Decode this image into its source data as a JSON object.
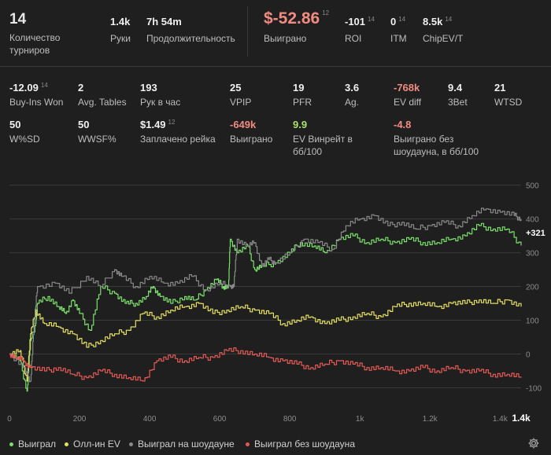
{
  "summary": {
    "tournaments": {
      "value": "14",
      "label": "Количество турниров"
    },
    "hands": {
      "value": "1.4k",
      "label": "Руки"
    },
    "duration": {
      "value": "7h 54m",
      "label": "Продолжительность"
    },
    "won": {
      "value": "$-52.86",
      "count": "12",
      "label": "Выиграно"
    },
    "roi": {
      "value": "-101",
      "count": "14",
      "label": "ROI"
    },
    "itm": {
      "value": "0",
      "count": "14",
      "label": "ITM"
    },
    "chipev": {
      "value": "8.5k",
      "count": "14",
      "label": "ChipEV/T"
    }
  },
  "stats_row1": [
    {
      "value": "-12.09",
      "count": "14",
      "label": "Buy-Ins Won",
      "neg": false
    },
    {
      "value": "2",
      "count": "",
      "label": "Avg. Tables",
      "neg": false
    },
    {
      "value": "193",
      "count": "",
      "label": "Рук в час",
      "neg": false
    },
    {
      "value": "25",
      "count": "",
      "label": "VPIP",
      "neg": false
    },
    {
      "value": "19",
      "count": "",
      "label": "PFR",
      "neg": false
    },
    {
      "value": "3.6",
      "count": "",
      "label": "Ag.",
      "neg": false
    },
    {
      "value": "-768k",
      "count": "",
      "label": "EV diff",
      "neg": true
    },
    {
      "value": "9.4",
      "count": "",
      "label": "3Bet",
      "neg": false
    },
    {
      "value": "21",
      "count": "",
      "label": "WTSD",
      "neg": false
    }
  ],
  "stats_row2": [
    {
      "value": "50",
      "count": "",
      "label": "W%SD",
      "kind": ""
    },
    {
      "value": "50",
      "count": "",
      "label": "WWSF%",
      "kind": ""
    },
    {
      "value": "$1.49",
      "count": "12",
      "label": "Заплачено рейка",
      "kind": ""
    },
    {
      "value": "-649k",
      "count": "",
      "label": "Выиграно",
      "kind": "neg"
    },
    {
      "value": "9.9",
      "count": "",
      "label": "EV Винрейт в бб/100",
      "kind": "pos"
    },
    {
      "value": "-4.8",
      "count": "",
      "label": "Выиграно без шоудауна, в бб/100",
      "kind": "neg"
    }
  ],
  "chart_data": {
    "type": "line",
    "y_ticks": [
      "500",
      "400",
      "300",
      "200",
      "100",
      "0",
      "-100"
    ],
    "x_ticks": [
      "0",
      "200",
      "400",
      "600",
      "800",
      "1k",
      "1.2k",
      "1.4k"
    ],
    "x_end_label": "1.4k",
    "end_value_label": "+321",
    "ylim": [
      -150,
      520
    ],
    "xlim": [
      0,
      1460
    ],
    "series": [
      {
        "name": "Выиграл",
        "color": "#7be06b",
        "x": [
          0,
          30,
          50,
          60,
          75,
          80,
          110,
          140,
          160,
          180,
          200,
          230,
          260,
          300,
          330,
          360,
          390,
          410,
          430,
          460,
          500,
          530,
          560,
          590,
          610,
          625,
          630,
          650,
          680,
          700,
          720,
          760,
          800,
          830,
          870,
          900,
          940,
          980,
          1020,
          1060,
          1100,
          1140,
          1180,
          1220,
          1260,
          1300,
          1340,
          1380,
          1420,
          1460
        ],
        "y": [
          0,
          -20,
          -110,
          40,
          90,
          150,
          170,
          140,
          120,
          160,
          120,
          70,
          200,
          180,
          150,
          150,
          170,
          200,
          170,
          150,
          170,
          160,
          190,
          220,
          200,
          200,
          340,
          300,
          320,
          250,
          260,
          270,
          300,
          330,
          320,
          300,
          340,
          350,
          330,
          340,
          330,
          340,
          330,
          330,
          340,
          350,
          380,
          370,
          370,
          321
        ]
      },
      {
        "name": "Олл-ин EV",
        "color": "#e6e060",
        "x": [
          0,
          30,
          50,
          60,
          75,
          100,
          140,
          180,
          220,
          260,
          300,
          340,
          380,
          420,
          460,
          500,
          540,
          580,
          620,
          660,
          700,
          740,
          780,
          820,
          860,
          900,
          940,
          980,
          1020,
          1060,
          1100,
          1140,
          1180,
          1220,
          1260,
          1300,
          1340,
          1380,
          1420,
          1460
        ],
        "y": [
          0,
          10,
          -80,
          60,
          130,
          90,
          80,
          60,
          20,
          40,
          60,
          70,
          120,
          110,
          130,
          140,
          150,
          120,
          130,
          140,
          130,
          120,
          90,
          100,
          110,
          90,
          100,
          110,
          120,
          110,
          140,
          150,
          150,
          140,
          150,
          150,
          160,
          150,
          160,
          140
        ]
      },
      {
        "name": "Выиграл на шоудауне",
        "color": "#8a8a8a",
        "x": [
          0,
          40,
          60,
          70,
          80,
          130,
          170,
          220,
          260,
          300,
          320,
          360,
          400,
          440,
          480,
          520,
          560,
          600,
          630,
          640,
          650,
          680,
          700,
          720,
          740,
          760,
          800,
          840,
          880,
          920,
          960,
          1000,
          1040,
          1080,
          1120,
          1160,
          1200,
          1240,
          1280,
          1320,
          1360,
          1400,
          1440,
          1460
        ],
        "y": [
          0,
          -40,
          -80,
          90,
          200,
          210,
          180,
          230,
          200,
          250,
          230,
          200,
          230,
          210,
          210,
          230,
          190,
          210,
          200,
          200,
          340,
          320,
          330,
          260,
          280,
          270,
          300,
          340,
          330,
          310,
          380,
          400,
          410,
          380,
          390,
          370,
          380,
          390,
          380,
          410,
          430,
          420,
          410,
          400
        ]
      },
      {
        "name": "Выиграл без шоудауна",
        "color": "#e55a55",
        "x": [
          0,
          20,
          40,
          60,
          100,
          140,
          180,
          220,
          260,
          300,
          340,
          380,
          420,
          460,
          500,
          540,
          580,
          620,
          660,
          700,
          740,
          780,
          820,
          860,
          900,
          940,
          980,
          1020,
          1060,
          1100,
          1140,
          1180,
          1220,
          1260,
          1300,
          1340,
          1380,
          1420,
          1460
        ],
        "y": [
          0,
          -10,
          -20,
          -40,
          -50,
          -40,
          -60,
          -70,
          -50,
          -60,
          -70,
          -80,
          -20,
          -10,
          -20,
          -10,
          -10,
          10,
          10,
          0,
          -10,
          -20,
          -30,
          -40,
          -30,
          -20,
          -30,
          -40,
          -40,
          -50,
          -50,
          -40,
          -50,
          -40,
          -50,
          -50,
          -60,
          -60,
          -70
        ]
      }
    ]
  },
  "legend": [
    {
      "label": "Выиграл",
      "color": "#7be06b"
    },
    {
      "label": "Олл-ин EV",
      "color": "#e6e060"
    },
    {
      "label": "Выиграл на шоудауне",
      "color": "#8a8a8a"
    },
    {
      "label": "Выиграл без шоудауна",
      "color": "#e55a55"
    }
  ],
  "icons": {
    "settings": "gear-icon"
  }
}
